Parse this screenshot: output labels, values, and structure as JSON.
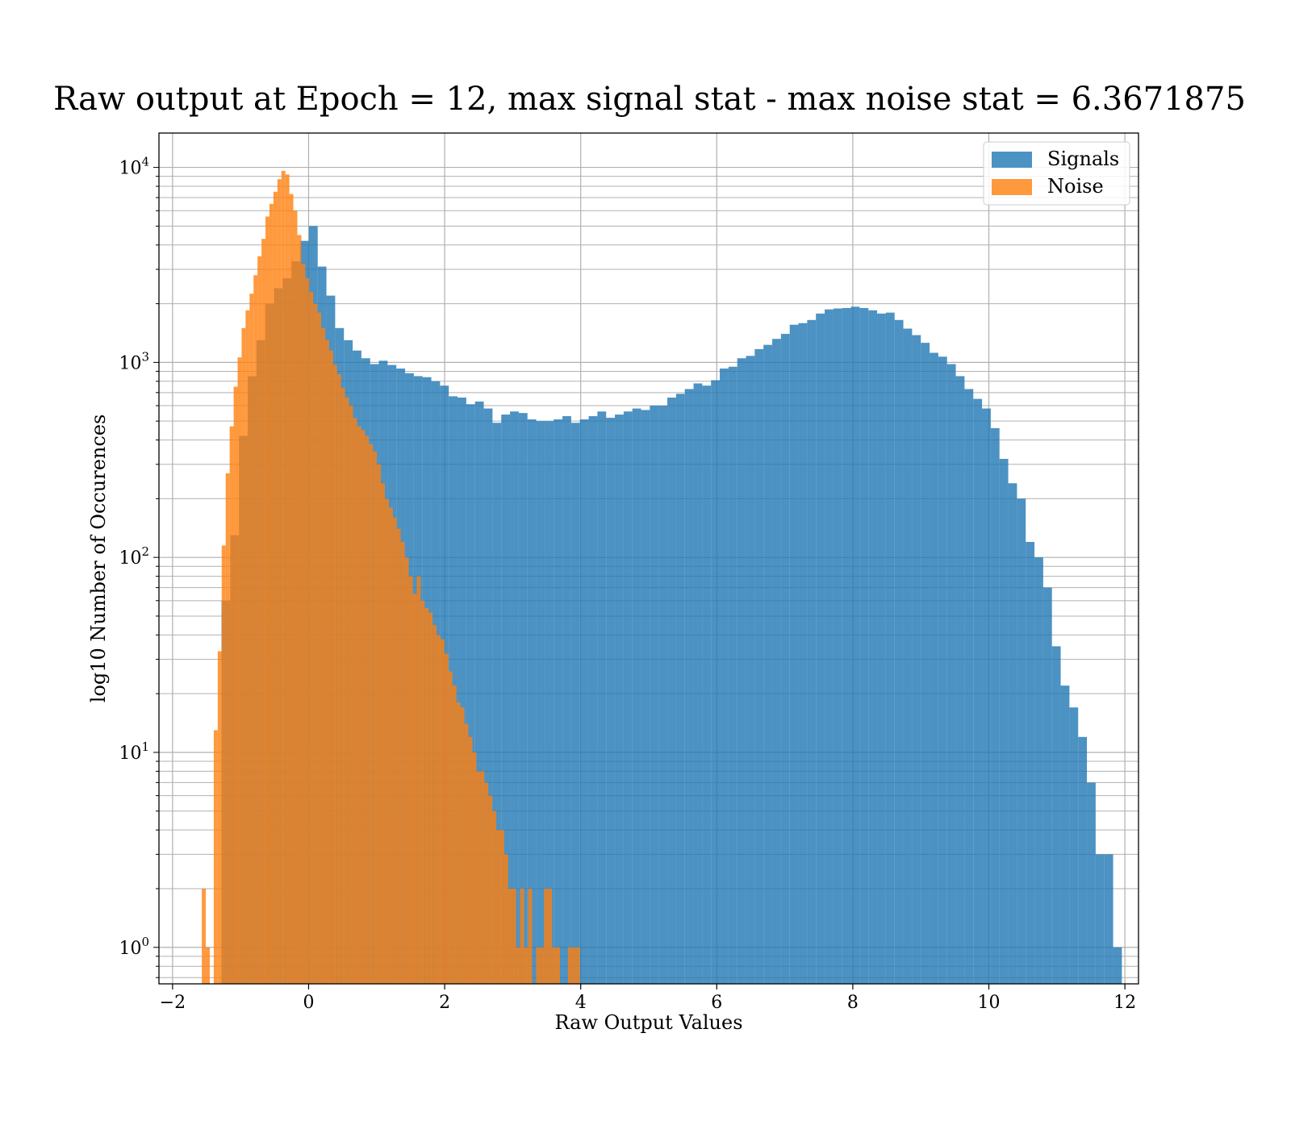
{
  "chart_data": {
    "type": "histogram",
    "title": "Raw output at Epoch = 12, max signal stat - max noise stat = 6.3671875",
    "xlabel": "Raw Output Values",
    "ylabel": "log10 Number of Occurences",
    "xlim": [
      -2.2,
      12.2
    ],
    "ylim": [
      0.65,
      15000
    ],
    "yscale": "log",
    "grid": true,
    "legend_position": "top-right",
    "x_ticks": [
      {
        "value": -2,
        "label": "−2"
      },
      {
        "value": 0,
        "label": "0"
      },
      {
        "value": 2,
        "label": "2"
      },
      {
        "value": 4,
        "label": "4"
      },
      {
        "value": 6,
        "label": "6"
      },
      {
        "value": 8,
        "label": "8"
      },
      {
        "value": 10,
        "label": "10"
      },
      {
        "value": 12,
        "label": "12"
      }
    ],
    "y_ticks": [
      {
        "value": 1,
        "base": "10",
        "exp": "0"
      },
      {
        "value": 10,
        "base": "10",
        "exp": "1"
      },
      {
        "value": 100,
        "base": "10",
        "exp": "2"
      },
      {
        "value": 1000,
        "base": "10",
        "exp": "3"
      },
      {
        "value": 10000,
        "base": "10",
        "exp": "4"
      }
    ],
    "series": [
      {
        "name": "Signals",
        "color": "#1f77b4",
        "opacity": 0.8,
        "bin_start": -1.28,
        "bin_width": 0.1285,
        "values": [
          60,
          130,
          420,
          850,
          1300,
          2000,
          2400,
          2700,
          3300,
          4200,
          5000,
          3100,
          2200,
          1500,
          1300,
          1150,
          1050,
          980,
          1020,
          970,
          930,
          880,
          850,
          840,
          800,
          760,
          670,
          660,
          610,
          630,
          580,
          490,
          540,
          560,
          550,
          510,
          500,
          500,
          510,
          530,
          490,
          510,
          530,
          560,
          520,
          540,
          560,
          580,
          570,
          600,
          600,
          660,
          690,
          730,
          780,
          760,
          810,
          930,
          950,
          1050,
          1080,
          1170,
          1230,
          1320,
          1400,
          1560,
          1590,
          1650,
          1780,
          1870,
          1890,
          1900,
          1930,
          1900,
          1850,
          1780,
          1800,
          1650,
          1490,
          1380,
          1260,
          1120,
          1070,
          980,
          850,
          730,
          650,
          580,
          460,
          320,
          240,
          200,
          120,
          100,
          70,
          35,
          22,
          17,
          12,
          7,
          3,
          3,
          1
        ]
      },
      {
        "name": "Noise",
        "color": "#ff7f0e",
        "opacity": 0.8,
        "bin_start": -1.57,
        "bin_width": 0.0585,
        "values": [
          2,
          1,
          0,
          13,
          33,
          115,
          270,
          470,
          750,
          1060,
          1500,
          1850,
          2250,
          2800,
          3500,
          4300,
          5600,
          6500,
          7500,
          8700,
          9600,
          9200,
          7300,
          6000,
          4500,
          3200,
          2700,
          2300,
          2000,
          1800,
          1500,
          1300,
          1150,
          970,
          870,
          740,
          660,
          600,
          520,
          470,
          450,
          420,
          380,
          350,
          300,
          240,
          200,
          180,
          160,
          140,
          120,
          100,
          80,
          65,
          80,
          60,
          55,
          52,
          45,
          40,
          38,
          32,
          26,
          22,
          18,
          17,
          14,
          12,
          10,
          8,
          8,
          7,
          6,
          5,
          4,
          4,
          3,
          2,
          2,
          1,
          2,
          1,
          2,
          0,
          1,
          1,
          2,
          2,
          1,
          1,
          0,
          0,
          1,
          1,
          1
        ]
      }
    ]
  }
}
